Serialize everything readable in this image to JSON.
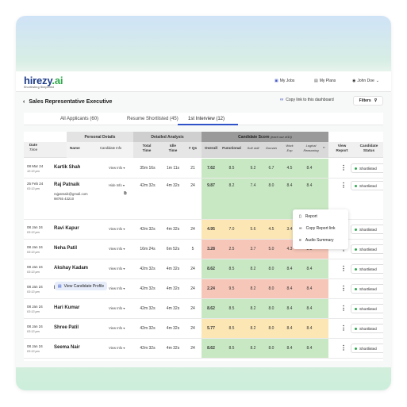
{
  "brand": {
    "logo_main": "hirezy",
    "logo_accent": ".ai",
    "tagline": "Shortlisting Simplified"
  },
  "nav": {
    "jobs": "My Jobs",
    "plans": "My Plans",
    "user": "John Doe"
  },
  "page": {
    "title": "Sales Representative Executive",
    "copy_link": "Copy link to this dashboard",
    "filters": "Filters"
  },
  "tabs": [
    "All Applicants (60)",
    "Resume Shortlisted (45)",
    "1st Interview (12)"
  ],
  "table": {
    "groups": {
      "personal": "Personal Details",
      "analysis": "Detailed Analysis",
      "score": "Candidate Score",
      "score_note": "(each out of10)"
    },
    "headers": {
      "date": "Date",
      "time": "Time",
      "name": "Name",
      "cinfo": "Candidate Info",
      "total": "Total",
      "total2": "Time",
      "idle": "Idle",
      "idle2": "Time",
      "qs": "# Qs",
      "overall": "Overall",
      "functional": "Functional",
      "soft": "Soft skill",
      "domain": "Domain",
      "work": "Work",
      "work2": "Exp",
      "logical": "Logical",
      "logical2": "Reasoning",
      "view": "View",
      "view2": "Report",
      "cstatus": "Candidate",
      "cstatus2": "Status"
    },
    "rows": [
      {
        "date": "08 Mar 24",
        "time": "12:13 pm",
        "name": "Kartik Shah",
        "info": "View Info",
        "total": "35m 16s",
        "idle": "1m 11s",
        "qs": "21",
        "overall": "7.62",
        "functional": "8.5",
        "soft": "9.2",
        "domain": "6.7",
        "work": "4.5",
        "logical": "8.4",
        "status": "Shortlisted",
        "color": "green"
      },
      {
        "date": "25 Feb 24",
        "time": "03:13 pm",
        "name": "Raj Patnaik",
        "info": "Hide Info",
        "email": "rajpatnaik@gmail.com",
        "phone": "98765 43210",
        "profile": "View Candidate Profile",
        "total": "42m 32s",
        "idle": "4m 32s",
        "qs": "24",
        "overall": "9.87",
        "functional": "8.2",
        "soft": "7.4",
        "domain": "8.0",
        "work": "8.4",
        "logical": "8.4",
        "status": "Shortlisted",
        "color": "green"
      },
      {
        "date": "08 Jan 24",
        "time": "03:13 pm",
        "name": "Ravi Kapur",
        "info": "View Info",
        "total": "42m 32s",
        "idle": "4m 32s",
        "qs": "24",
        "overall": "4.95",
        "functional": "7.0",
        "soft": "5.6",
        "domain": "4.5",
        "work": "3.4",
        "logical": "2.3",
        "status": "Shortlisted",
        "color": "yellow"
      },
      {
        "date": "08 Jan 24",
        "time": "03:13 pm",
        "name": "Neha Patil",
        "info": "View Info",
        "total": "16m 24s",
        "idle": "6m 52s",
        "qs": "5",
        "overall": "3.28",
        "functional": "2.5",
        "soft": "3.7",
        "domain": "5.0",
        "work": "4.3",
        "logical": "2.8",
        "status": "Shortlisted",
        "color": "red"
      },
      {
        "date": "08 Jan 24",
        "time": "03:13 pm",
        "name": "Akshay Kadam",
        "info": "View Info",
        "total": "42m 32s",
        "idle": "4m 32s",
        "qs": "24",
        "overall": "8.62",
        "functional": "8.5",
        "soft": "8.2",
        "domain": "8.0",
        "work": "8.4",
        "logical": "8.4",
        "status": "Shortlisted",
        "color": "green"
      },
      {
        "date": "08 Jan 24",
        "time": "03:13 pm",
        "name": "Ruchi Gupta",
        "info": "View Info",
        "total": "42m 32s",
        "idle": "4m 32s",
        "qs": "24",
        "overall": "2.24",
        "functional": "9.5",
        "soft": "8.2",
        "domain": "8.0",
        "work": "8.4",
        "logical": "8.4",
        "status": "Shortlisted",
        "color": "red"
      },
      {
        "date": "08 Jan 24",
        "time": "03:13 pm",
        "name": "Hari Kumar",
        "info": "View Info",
        "total": "42m 32s",
        "idle": "4m 32s",
        "qs": "24",
        "overall": "8.62",
        "functional": "8.5",
        "soft": "8.2",
        "domain": "8.0",
        "work": "8.4",
        "logical": "8.4",
        "status": "Shortlisted",
        "color": "green"
      },
      {
        "date": "08 Jan 24",
        "time": "03:13 pm",
        "name": "Shree Patil",
        "info": "View Info",
        "total": "42m 32s",
        "idle": "4m 32s",
        "qs": "24",
        "overall": "5.77",
        "functional": "8.5",
        "soft": "8.2",
        "domain": "8.0",
        "work": "8.4",
        "logical": "8.4",
        "status": "Shortlisted",
        "color": "yellow"
      },
      {
        "date": "08 Jan 24",
        "time": "03:13 pm",
        "name": "Seema Nair",
        "info": "View Info",
        "total": "42m 32s",
        "idle": "4m 32s",
        "qs": "24",
        "overall": "8.62",
        "functional": "8.5",
        "soft": "8.2",
        "domain": "8.0",
        "work": "8.4",
        "logical": "8.4",
        "status": "Shortlisted",
        "color": "green"
      }
    ]
  },
  "menu": {
    "report": "Report",
    "copy": "Copy Report link",
    "audio": "Audio Summary"
  },
  "colors": {
    "green": "#c8e8c3",
    "yellow": "#fbe6b4",
    "red": "#f6c7b9",
    "accent": "#2f52c8"
  }
}
